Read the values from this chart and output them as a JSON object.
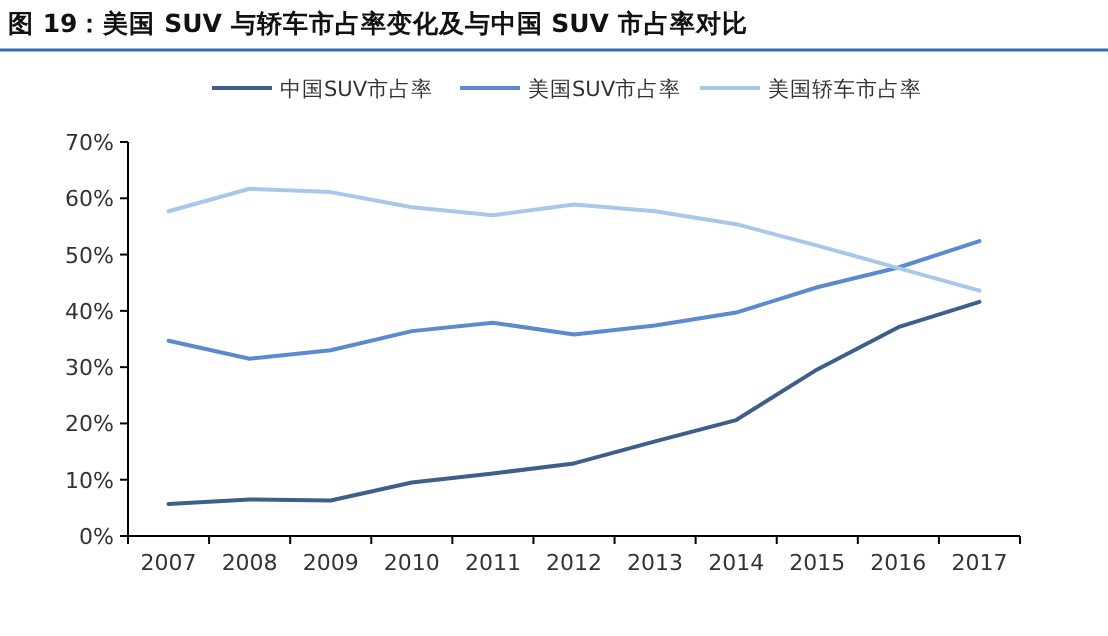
{
  "chart_data": {
    "type": "line",
    "title": "图 19：美国 SUV 与轿车市占率变化及与中国 SUV 市占率对比",
    "categories": [
      "2007",
      "2008",
      "2009",
      "2010",
      "2011",
      "2012",
      "2013",
      "2014",
      "2015",
      "2016",
      "2017"
    ],
    "series": [
      {
        "name": "中国SUV市占率",
        "color": "#3e5f8a",
        "values": [
          5.7,
          6.5,
          6.3,
          9.5,
          11.1,
          12.9,
          16.8,
          20.6,
          29.6,
          37.1,
          41.6
        ]
      },
      {
        "name": "美国SUV市占率",
        "color": "#5b8ad0",
        "values": [
          34.7,
          31.5,
          33.0,
          36.4,
          37.9,
          35.8,
          37.4,
          39.7,
          44.2,
          47.7,
          52.4
        ]
      },
      {
        "name": "美国轿车市占率",
        "color": "#a9c7ea",
        "values": [
          57.7,
          61.7,
          61.1,
          58.4,
          57.0,
          58.9,
          57.7,
          55.4,
          51.6,
          47.6,
          43.6
        ]
      }
    ],
    "ylim": [
      0,
      70
    ],
    "yticks": [
      {
        "value": 0,
        "label": "0%"
      },
      {
        "value": 10,
        "label": "10%"
      },
      {
        "value": 20,
        "label": "20%"
      },
      {
        "value": 30,
        "label": "30%"
      },
      {
        "value": 40,
        "label": "40%"
      },
      {
        "value": 50,
        "label": "50%"
      },
      {
        "value": 60,
        "label": "60%"
      },
      {
        "value": 70,
        "label": "70%"
      }
    ],
    "legend": "top",
    "grid": false,
    "marker": "none",
    "line_style": "solid"
  }
}
